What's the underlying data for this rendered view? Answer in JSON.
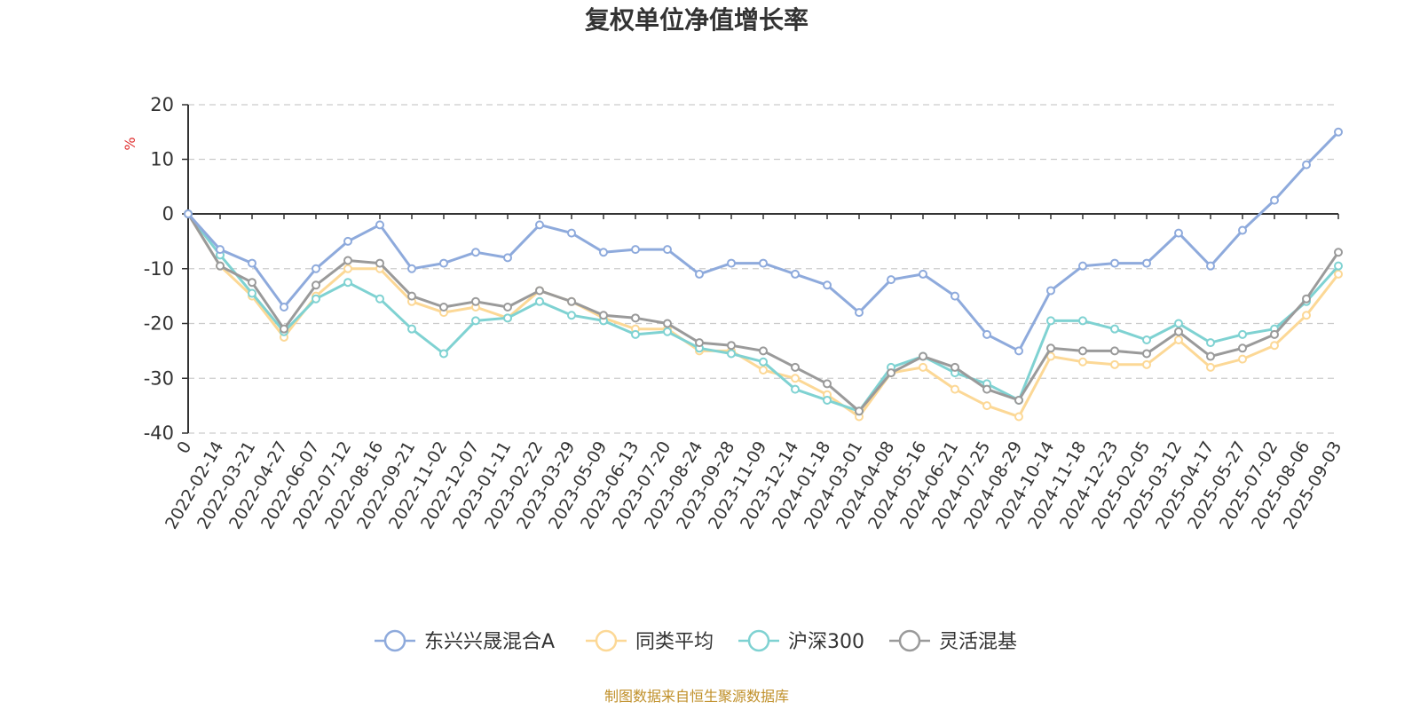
{
  "chart_data": {
    "type": "line",
    "title": "复权单位净值增长率",
    "ylabel": "%",
    "ylim": [
      -40,
      20
    ],
    "yticks": [
      20,
      10,
      0,
      -10,
      -20,
      -30,
      -40
    ],
    "grid": true,
    "legend_position": "bottom",
    "source": "制图数据来自恒生聚源数据库",
    "x_labels": [
      "0",
      "2022-02-14",
      "2022-03-21",
      "2022-04-27",
      "2022-06-07",
      "2022-07-12",
      "2022-08-16",
      "2022-09-21",
      "2022-11-02",
      "2022-12-07",
      "2023-01-11",
      "2023-02-22",
      "2023-03-29",
      "2023-05-09",
      "2023-06-13",
      "2023-07-20",
      "2023-08-24",
      "2023-09-28",
      "2023-11-09",
      "2023-12-14",
      "2024-01-18",
      "2024-03-01",
      "2024-04-08",
      "2024-05-16",
      "2024-06-21",
      "2024-07-25",
      "2024-08-29",
      "2024-10-14",
      "2024-11-18",
      "2024-12-23",
      "2025-02-05",
      "2025-03-12",
      "2025-04-17",
      "2025-05-27",
      "2025-07-02",
      "2025-08-06",
      "2025-09-03"
    ],
    "series": [
      {
        "name": "东兴兴晟混合A",
        "color": "#8eaadc",
        "values": [
          0,
          -6.5,
          -9,
          -17,
          -10,
          -5,
          -2,
          -10,
          -9,
          -7,
          -8,
          -2,
          -3.5,
          -7,
          -6.5,
          -6.5,
          -11,
          -9,
          -9,
          -11,
          -13,
          -18,
          -12,
          -11,
          -15,
          -22,
          -25,
          -14,
          -9.5,
          -9,
          -9,
          -3.5,
          -9.5,
          -3,
          2.5,
          9,
          15
        ]
      },
      {
        "name": "同类平均",
        "color": "#fcd896",
        "values": [
          0,
          -9.5,
          -15,
          -22.5,
          -15,
          -10,
          -10,
          -16,
          -18,
          -17,
          -19,
          -14,
          -16,
          -19,
          -21,
          -21,
          -25,
          -25,
          -28.5,
          -30,
          -33,
          -37,
          -29,
          -28,
          -32,
          -35,
          -37,
          -26,
          -27,
          -27.5,
          -27.5,
          -23,
          -28,
          -26.5,
          -24,
          -18.5,
          -11
        ]
      },
      {
        "name": "沪深300",
        "color": "#7fd2d2",
        "values": [
          0,
          -7.5,
          -14.5,
          -21.5,
          -15.5,
          -12.5,
          -15.5,
          -21,
          -25.5,
          -19.5,
          -19,
          -16,
          -18.5,
          -19.5,
          -22,
          -21.5,
          -24.5,
          -25.5,
          -27,
          -32,
          -34,
          -36,
          -28,
          -26,
          -29,
          -31,
          -34,
          -19.5,
          -19.5,
          -21,
          -23,
          -20,
          -23.5,
          -22,
          -21,
          -16,
          -9.5
        ]
      },
      {
        "name": "灵活混基",
        "color": "#9a9a9a",
        "values": [
          0,
          -9.5,
          -12.5,
          -21,
          -13,
          -8.5,
          -9,
          -15,
          -17,
          -16,
          -17,
          -14,
          -16,
          -18.5,
          -19,
          -20,
          -23.5,
          -24,
          -25,
          -28,
          -31,
          -36,
          -29,
          -26,
          -28,
          -32,
          -34,
          -24.5,
          -25,
          -25,
          -25.5,
          -21.5,
          -26,
          -24.5,
          -22,
          -15.5,
          -7
        ]
      }
    ]
  }
}
